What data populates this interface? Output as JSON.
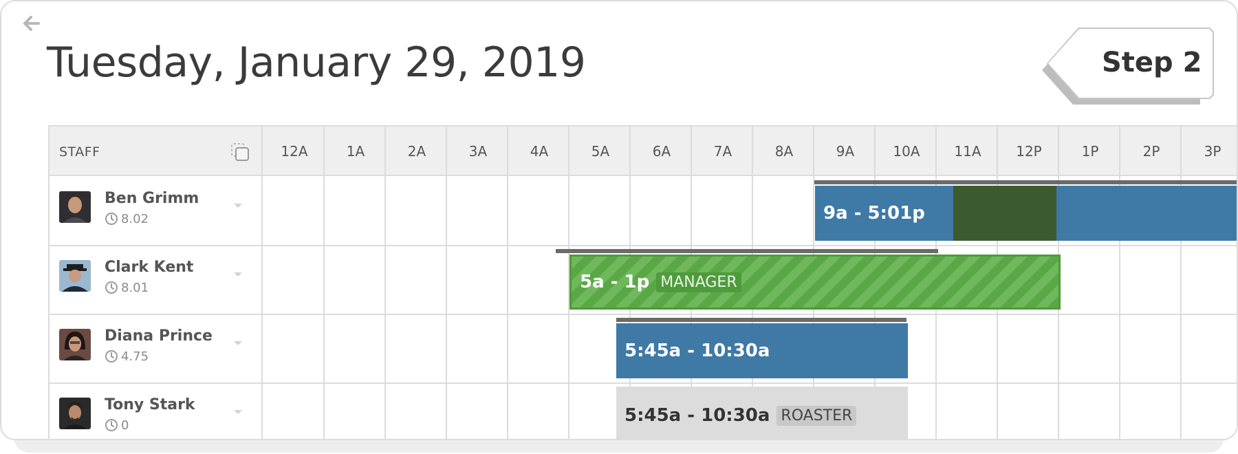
{
  "header": {
    "date_title": "Tuesday, January 29, 2019",
    "step_label": "Step 2"
  },
  "grid": {
    "staff_header": "STAFF",
    "hours": [
      "12A",
      "1A",
      "2A",
      "3A",
      "4A",
      "5A",
      "6A",
      "7A",
      "8A",
      "9A",
      "10A",
      "11A",
      "12P",
      "1P",
      "2P",
      "3P"
    ]
  },
  "staff": [
    {
      "name": "Ben Grimm",
      "hours": "8.02"
    },
    {
      "name": "Clark Kent",
      "hours": "8.01"
    },
    {
      "name": "Diana Prince",
      "hours": "4.75"
    },
    {
      "name": "Tony Stark",
      "hours": "0"
    }
  ],
  "shifts": [
    {
      "time": "9a - 5:01p",
      "tag": ""
    },
    {
      "time": "5a - 1p",
      "tag": "MANAGER"
    },
    {
      "time": "5:45a - 10:30a",
      "tag": ""
    },
    {
      "time": "5:45a - 10:30a",
      "tag": "ROASTER"
    }
  ],
  "colors": {
    "shift_blue": "#3f79a6",
    "shift_green": "#5aa745",
    "break_dark_green": "#3b5b2f",
    "shift_gray": "#dcdcdc"
  },
  "icons": [
    "back-arrow-icon",
    "copy-icon",
    "clock-icon",
    "chevron-down-icon"
  ]
}
